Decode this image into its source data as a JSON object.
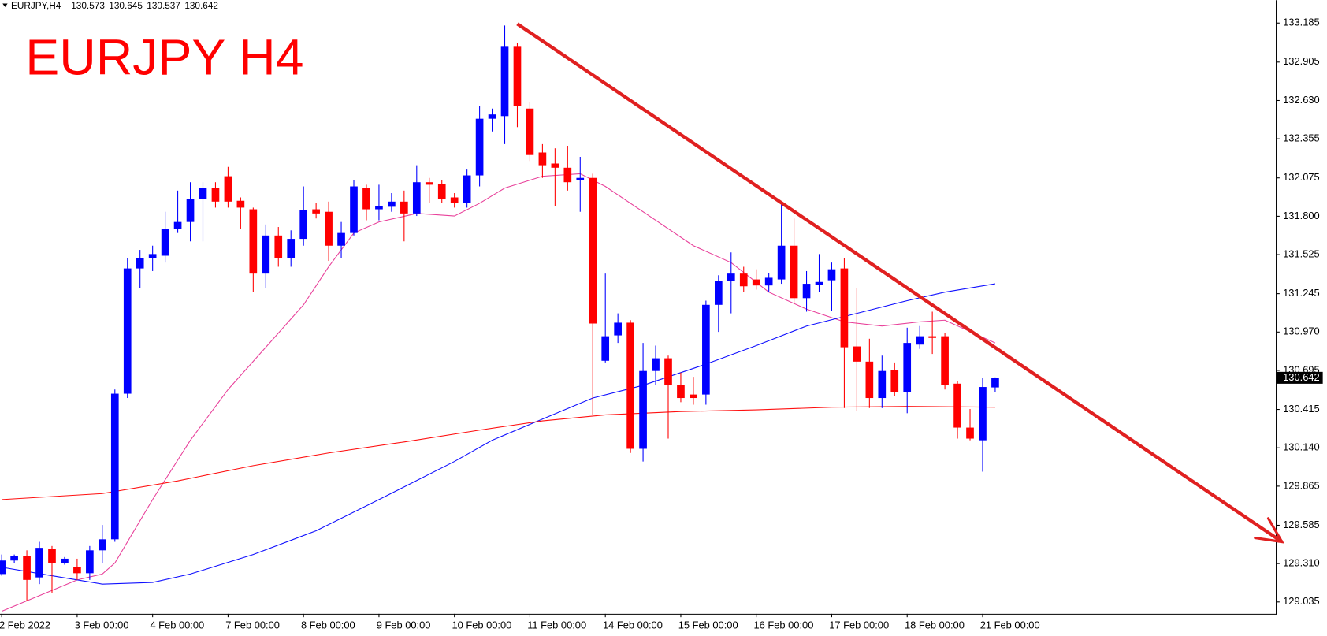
{
  "chart_data": {
    "type": "candlestick",
    "symbol": "EURJPY,H4",
    "title": "EURJPY H4",
    "title_color": "#ff0000",
    "up_color": "#0000ff",
    "down_color": "#ff0000",
    "categories": [
      "2 Feb 2022",
      null,
      null,
      null,
      null,
      null,
      "3 Feb 00:00",
      null,
      null,
      null,
      null,
      null,
      "4 Feb 00:00",
      null,
      null,
      null,
      null,
      null,
      "7 Feb 00:00",
      null,
      null,
      null,
      null,
      null,
      "8 Feb 00:00",
      null,
      null,
      null,
      null,
      null,
      "9 Feb 00:00",
      null,
      null,
      null,
      null,
      null,
      "10 Feb 00:00",
      null,
      null,
      null,
      null,
      null,
      "11 Feb 00:00",
      null,
      null,
      null,
      null,
      null,
      "14 Feb 00:00",
      null,
      null,
      null,
      null,
      null,
      "15 Feb 00:00",
      null,
      null,
      null,
      null,
      null,
      "16 Feb 00:00",
      null,
      null,
      null,
      null,
      null,
      "17 Feb 00:00",
      null,
      null,
      null,
      null,
      null,
      "18 Feb 00:00",
      null,
      null,
      null,
      null,
      null,
      "21 Feb 00:00",
      null
    ],
    "open": [
      129.235,
      129.332,
      129.363,
      129.211,
      129.417,
      129.314,
      129.284,
      129.241,
      129.405,
      129.484,
      130.528,
      131.426,
      131.498,
      131.517,
      131.711,
      131.759,
      131.923,
      132.002,
      132.087,
      131.911,
      131.85,
      131.389,
      131.662,
      131.498,
      131.638,
      131.85,
      131.832,
      131.589,
      131.68,
      132.002,
      131.85,
      131.868,
      131.905,
      131.82,
      132.044,
      132.032,
      131.935,
      131.893,
      132.093,
      132.499,
      132.518,
      133.015,
      132.572,
      132.257,
      132.178,
      132.148,
      132.057,
      132.075,
      130.764,
      130.946,
      131.037,
      130.133,
      130.691,
      130.782,
      130.588,
      130.522,
      130.522,
      131.165,
      131.335,
      131.389,
      131.347,
      131.304,
      131.347,
      131.589,
      131.213,
      131.31,
      131.341,
      131.426,
      130.867,
      130.758,
      130.497,
      130.698,
      130.54,
      130.88,
      130.94,
      130.94,
      130.6,
      130.285,
      130.194,
      130.573
    ],
    "high": [
      129.375,
      129.375,
      129.405,
      129.466,
      129.436,
      129.357,
      129.345,
      129.436,
      129.587,
      130.558,
      131.498,
      131.559,
      131.589,
      131.832,
      131.984,
      132.044,
      132.044,
      132.044,
      132.154,
      131.935,
      131.862,
      131.741,
      131.723,
      131.699,
      132.014,
      131.893,
      131.905,
      131.759,
      132.057,
      132.026,
      132.026,
      131.966,
      131.984,
      132.166,
      132.075,
      132.057,
      131.966,
      132.135,
      132.59,
      132.572,
      133.167,
      133.045,
      132.621,
      132.317,
      132.287,
      132.305,
      132.226,
      132.105,
      131.389,
      131.104,
      131.055,
      130.892,
      130.873,
      130.801,
      130.679,
      130.649,
      131.195,
      131.377,
      131.541,
      131.438,
      131.42,
      131.395,
      131.893,
      131.784,
      131.407,
      131.529,
      131.468,
      131.498,
      131.286,
      130.922,
      130.801,
      130.752,
      131.001,
      131.013,
      131.116,
      130.964,
      130.619,
      130.418,
      130.643,
      130.645
    ],
    "low": [
      129.223,
      129.314,
      129.041,
      129.163,
      129.102,
      129.302,
      129.193,
      129.193,
      129.314,
      129.466,
      130.497,
      131.286,
      131.407,
      131.468,
      131.68,
      131.62,
      131.62,
      131.862,
      131.862,
      131.711,
      131.256,
      131.286,
      131.438,
      131.438,
      131.589,
      131.784,
      131.48,
      131.498,
      131.662,
      131.771,
      131.771,
      131.832,
      131.62,
      131.802,
      131.893,
      131.893,
      131.862,
      131.862,
      132.014,
      132.408,
      132.317,
      132.439,
      132.196,
      132.075,
      131.875,
      131.984,
      131.832,
      130.376,
      130.752,
      130.892,
      130.103,
      130.042,
      130.588,
      130.206,
      130.467,
      130.449,
      130.449,
      130.971,
      131.104,
      131.256,
      131.274,
      131.256,
      131.316,
      131.177,
      131.116,
      131.256,
      131.122,
      130.425,
      130.406,
      130.425,
      130.425,
      130.509,
      130.388,
      130.849,
      130.813,
      130.558,
      130.206,
      130.194,
      129.969,
      130.537
    ],
    "close": [
      129.332,
      129.363,
      129.193,
      129.423,
      129.314,
      129.345,
      129.241,
      129.405,
      129.484,
      130.528,
      131.426,
      131.498,
      131.529,
      131.711,
      131.759,
      131.923,
      132.002,
      131.905,
      131.905,
      131.862,
      131.389,
      131.662,
      131.498,
      131.638,
      131.844,
      131.82,
      131.589,
      131.68,
      132.014,
      131.85,
      131.875,
      131.905,
      131.82,
      132.044,
      132.026,
      131.923,
      131.893,
      132.093,
      132.499,
      132.53,
      133.015,
      132.59,
      132.239,
      132.166,
      132.148,
      132.044,
      132.075,
      131.031,
      130.94,
      131.037,
      130.133,
      130.691,
      130.782,
      130.588,
      130.497,
      130.497,
      131.165,
      131.335,
      131.389,
      131.298,
      131.304,
      131.359,
      131.589,
      131.213,
      131.316,
      131.329,
      131.42,
      130.861,
      130.758,
      130.497,
      130.691,
      130.54,
      130.892,
      130.94,
      130.928,
      130.588,
      130.285,
      130.206,
      130.576,
      130.642
    ],
    "overlays": [
      {
        "color": "#e8409a",
        "x": [
          0,
          6,
          8,
          9,
          12,
          15,
          18,
          21,
          24,
          26,
          28,
          30,
          33,
          36,
          38,
          40,
          43,
          46,
          48,
          51,
          55,
          58,
          61,
          64,
          67,
          70,
          73,
          75,
          79
        ],
        "values": [
          128.968,
          129.193,
          129.235,
          129.314,
          129.769,
          130.194,
          130.558,
          130.861,
          131.165,
          131.438,
          131.68,
          131.759,
          131.82,
          131.802,
          131.893,
          132.002,
          132.087,
          132.105,
          132.014,
          131.832,
          131.589,
          131.468,
          131.256,
          131.134,
          131.043,
          131.013,
          131.043,
          131.055,
          130.892
        ]
      },
      {
        "color": "#1010ff",
        "x": [
          0,
          4,
          8,
          12,
          15,
          20,
          25,
          30,
          36,
          39,
          43,
          47,
          51,
          56,
          60,
          64,
          68,
          72,
          75,
          79
        ],
        "values": [
          129.284,
          129.223,
          129.163,
          129.175,
          129.235,
          129.375,
          129.545,
          129.769,
          130.042,
          130.194,
          130.346,
          130.497,
          130.588,
          130.74,
          130.873,
          131.013,
          131.104,
          131.195,
          131.256,
          131.316
        ]
      },
      {
        "color": "#ff1010",
        "x": [
          0,
          8,
          14,
          20,
          26,
          32,
          38,
          43,
          48,
          54,
          60,
          66,
          72,
          79
        ],
        "values": [
          129.769,
          129.812,
          129.903,
          130.012,
          130.103,
          130.182,
          130.267,
          130.333,
          130.376,
          130.4,
          130.412,
          130.431,
          130.437,
          130.431
        ]
      }
    ],
    "trendline": {
      "color": "#e02020",
      "x": [
        41,
        101.8
      ],
      "values": [
        133.179,
        129.466
      ]
    },
    "ylim": [
      128.95,
      133.349
    ],
    "yticks": [
      129.035,
      {
        "value": 129.31,
        "label": "129.310"
      },
      129.585,
      129.865,
      {
        "value": 130.14,
        "label": "130.140"
      },
      130.415,
      130.695,
      {
        "value": 130.97,
        "label": "130.970"
      },
      131.245,
      131.525,
      {
        "value": 131.8,
        "label": "131.800"
      },
      132.075,
      132.355,
      {
        "value": 132.63,
        "label": "132.630"
      },
      132.905,
      133.185
    ]
  }
}
